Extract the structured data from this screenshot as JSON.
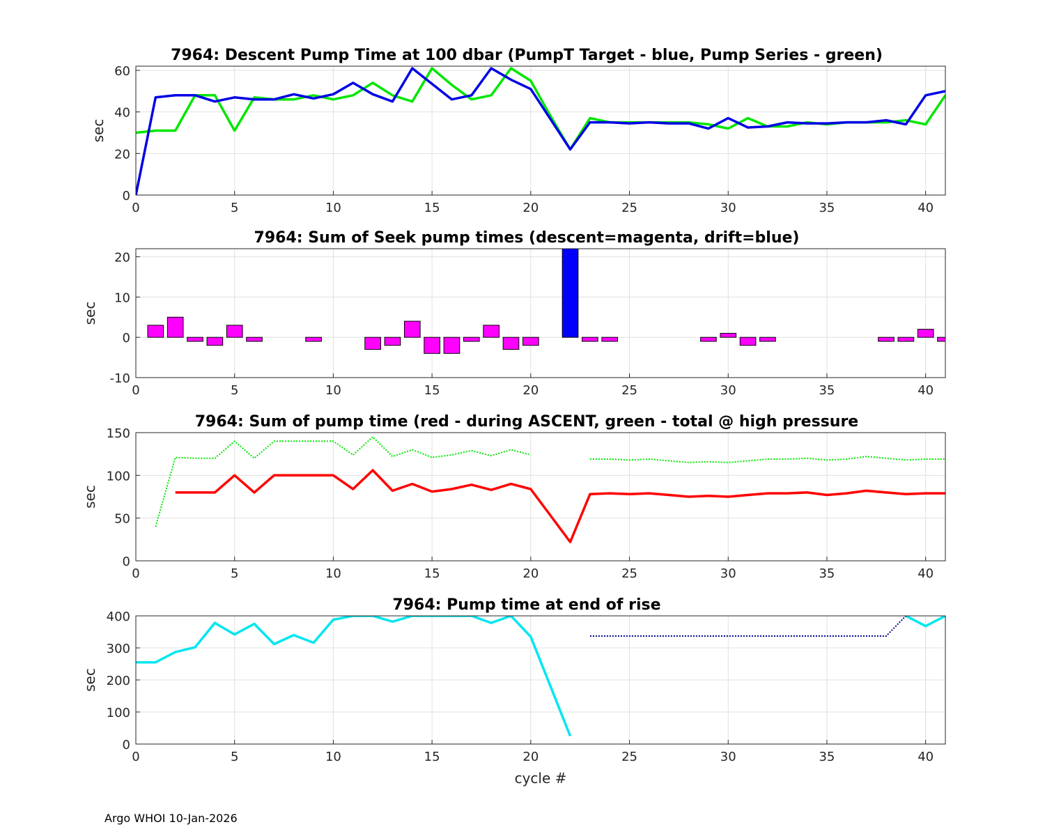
{
  "footer": "Argo WHOI 10-Jan-2026",
  "chart_data": [
    {
      "type": "line",
      "title": "7964: Descent Pump Time at 100 dbar (PumpT Target - blue, Pump Series - green)",
      "xlabel": "",
      "ylabel": "sec",
      "xlim": [
        0,
        41
      ],
      "ylim": [
        0,
        62
      ],
      "xticks": [
        0,
        5,
        10,
        15,
        20,
        25,
        30,
        35,
        40
      ],
      "yticks": [
        0,
        20,
        40,
        60
      ],
      "grid": true,
      "series": [
        {
          "name": "Pump Series",
          "color": "#00e600",
          "style": "solid",
          "x": [
            0,
            1,
            2,
            3,
            4,
            5,
            6,
            7,
            8,
            9,
            10,
            11,
            12,
            13,
            14,
            15,
            16,
            17,
            18,
            19,
            20,
            21,
            22,
            23,
            24,
            25,
            26,
            27,
            28,
            29,
            30,
            31,
            32,
            33,
            34,
            35,
            36,
            37,
            38,
            39,
            40,
            41
          ],
          "values": [
            30,
            31,
            31,
            48,
            48,
            31,
            47,
            46,
            46,
            48,
            46,
            48,
            54,
            48,
            45,
            61,
            53,
            46,
            48,
            61,
            55,
            38,
            22,
            37,
            35,
            35,
            35,
            35,
            35,
            34,
            32,
            37,
            33,
            33,
            35,
            34,
            35,
            35,
            35,
            36,
            34,
            48
          ]
        },
        {
          "name": "PumpT Target",
          "color": "#0000e6",
          "style": "solid",
          "x": [
            0,
            1,
            2,
            3,
            4,
            5,
            6,
            7,
            8,
            9,
            10,
            11,
            12,
            13,
            14,
            15,
            16,
            17,
            18,
            19,
            20,
            21,
            22,
            23,
            24,
            25,
            26,
            27,
            28,
            29,
            30,
            31,
            32,
            33,
            34,
            35,
            36,
            37,
            38,
            39,
            40,
            41
          ],
          "values": [
            0,
            47,
            48,
            48,
            45,
            47,
            46,
            46,
            48.5,
            46.5,
            48.5,
            54,
            48.5,
            45,
            61,
            53.5,
            46,
            48,
            61,
            55.5,
            51,
            36.5,
            22,
            35,
            35,
            34.5,
            35,
            34.5,
            34.5,
            32,
            37,
            32.5,
            33,
            35,
            34.5,
            34.5,
            35,
            35,
            36,
            34,
            48,
            50
          ]
        }
      ]
    },
    {
      "type": "bar",
      "title": "7964: Sum of Seek pump times (descent=magenta, drift=blue)",
      "xlabel": "",
      "ylabel": "sec",
      "xlim": [
        0,
        41
      ],
      "ylim": [
        -10,
        22
      ],
      "xticks": [
        0,
        5,
        10,
        15,
        20,
        25,
        30,
        35,
        40
      ],
      "yticks": [
        -10,
        0,
        10,
        20
      ],
      "grid": true,
      "series": [
        {
          "name": "descent",
          "color": "#ff00ff",
          "x": [
            1,
            2,
            3,
            4,
            5,
            6,
            9,
            12,
            13,
            14,
            15,
            16,
            17,
            18,
            19,
            20,
            23,
            24,
            29,
            30,
            31,
            32,
            38,
            39,
            40,
            41
          ],
          "values": [
            3,
            5,
            -1,
            -2,
            3,
            -1,
            -1,
            -3,
            -2,
            4,
            -4,
            -4,
            -1,
            3,
            -3,
            -2,
            -1,
            -1,
            -1,
            1,
            -2,
            -1,
            -1,
            -1,
            2,
            -1
          ]
        },
        {
          "name": "drift",
          "color": "#0000ff",
          "x": [
            22
          ],
          "values": [
            22
          ]
        }
      ]
    },
    {
      "type": "line",
      "title": "7964: Sum of pump time (red - during ASCENT, green - total @ high pressure",
      "xlabel": "",
      "ylabel": "sec",
      "xlim": [
        0,
        41
      ],
      "ylim": [
        0,
        150
      ],
      "xticks": [
        0,
        5,
        10,
        15,
        20,
        25,
        30,
        35,
        40
      ],
      "yticks": [
        0,
        50,
        100,
        150
      ],
      "grid": true,
      "series": [
        {
          "name": "total @ high pressure",
          "color": "#00e600",
          "style": "dotted",
          "x": [
            1,
            2,
            3,
            4,
            5,
            6,
            7,
            8,
            9,
            10,
            11,
            12,
            13,
            14,
            15,
            16,
            17,
            18,
            19,
            20,
            null,
            23,
            24,
            25,
            26,
            27,
            28,
            29,
            30,
            31,
            32,
            33,
            34,
            35,
            36,
            37,
            38,
            39,
            40,
            41
          ],
          "values": [
            40,
            121,
            120,
            120,
            140,
            120,
            140,
            140,
            140,
            140,
            124,
            145,
            122,
            130,
            121,
            124,
            129,
            123,
            130,
            124,
            null,
            119,
            119,
            118,
            119,
            117,
            115,
            116,
            115,
            117,
            119,
            119,
            120,
            118,
            119,
            122,
            120,
            118,
            119,
            119
          ]
        },
        {
          "name": "during ASCENT",
          "color": "#ff0000",
          "style": "solid",
          "x": [
            2,
            3,
            4,
            5,
            6,
            7,
            8,
            9,
            10,
            11,
            12,
            13,
            14,
            15,
            16,
            17,
            18,
            19,
            20,
            21,
            22,
            23,
            24,
            25,
            26,
            27,
            28,
            29,
            30,
            31,
            32,
            33,
            34,
            35,
            36,
            37,
            38,
            39,
            40,
            41
          ],
          "values": [
            80,
            80,
            80,
            100,
            80,
            100,
            100,
            100,
            100,
            84,
            106,
            82,
            90,
            81,
            84,
            89,
            83,
            90,
            84,
            53,
            22,
            78,
            79,
            78,
            79,
            77,
            75,
            76,
            75,
            77,
            79,
            79,
            80,
            77,
            79,
            82,
            80,
            78,
            79,
            79
          ]
        }
      ]
    },
    {
      "type": "line",
      "title": "7964: Pump time at end of rise",
      "xlabel": "cycle #",
      "ylabel": "sec",
      "xlim": [
        0,
        41
      ],
      "ylim": [
        0,
        400
      ],
      "xticks": [
        0,
        5,
        10,
        15,
        20,
        25,
        30,
        35,
        40
      ],
      "yticks": [
        0,
        100,
        200,
        300,
        400
      ],
      "grid": true,
      "series": [
        {
          "name": "end of rise",
          "color": "#00e6f0",
          "style": "solid",
          "x": [
            0,
            1,
            2,
            3,
            4,
            5,
            6,
            7,
            8,
            9,
            10,
            11,
            12,
            13,
            14,
            15,
            16,
            17,
            18,
            19,
            20,
            21,
            22,
            null,
            39,
            40,
            41
          ],
          "values": [
            255,
            255,
            287,
            302,
            378,
            342,
            375,
            312,
            340,
            316,
            388,
            400,
            400,
            382,
            400,
            400,
            400,
            400,
            378,
            400,
            335,
            180,
            25,
            null,
            400,
            368,
            400
          ]
        },
        {
          "name": "target",
          "color": "#00008b",
          "style": "dotted",
          "x": [
            23,
            24,
            25,
            26,
            27,
            28,
            29,
            30,
            31,
            32,
            33,
            34,
            35,
            36,
            37,
            38,
            39
          ],
          "values": [
            337,
            337,
            337,
            337,
            337,
            337,
            337,
            337,
            337,
            337,
            337,
            337,
            337,
            337,
            337,
            337,
            400
          ]
        }
      ]
    }
  ]
}
